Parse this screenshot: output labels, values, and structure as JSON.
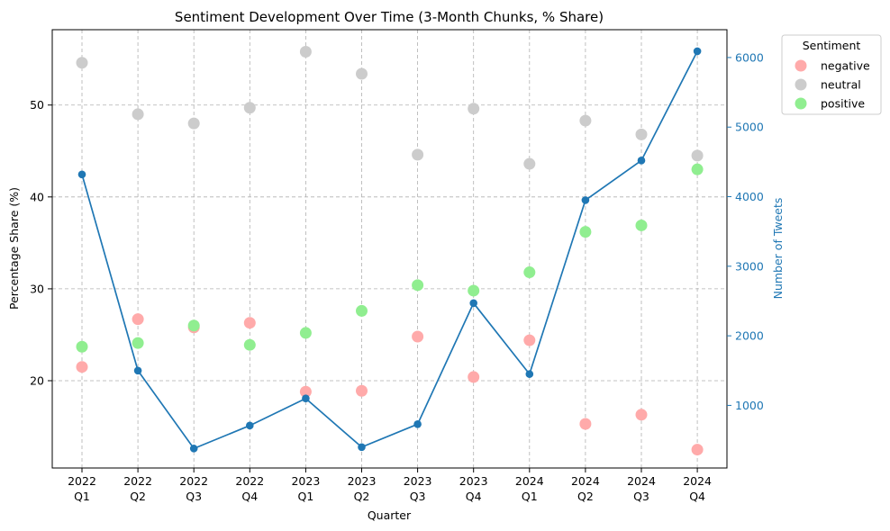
{
  "chart_data": {
    "type": "scatter",
    "title": "Sentiment Development Over Time (3-Month Chunks, % Share)",
    "xlabel": "Quarter",
    "ylabel": "Percentage Share (%)",
    "y2label": "Number of Tweets",
    "categories": [
      [
        "2022",
        "Q1"
      ],
      [
        "2022",
        "Q2"
      ],
      [
        "2022",
        "Q3"
      ],
      [
        "2022",
        "Q4"
      ],
      [
        "2023",
        "Q1"
      ],
      [
        "2023",
        "Q2"
      ],
      [
        "2023",
        "Q3"
      ],
      [
        "2023",
        "Q4"
      ],
      [
        "2024",
        "Q1"
      ],
      [
        "2024",
        "Q2"
      ],
      [
        "2024",
        "Q3"
      ],
      [
        "2024",
        "Q4"
      ]
    ],
    "ylim": [
      10.5,
      58.2
    ],
    "yticks": [
      20,
      30,
      40,
      50
    ],
    "y2lim": [
      100,
      6400
    ],
    "y2ticks": [
      1000,
      2000,
      3000,
      4000,
      5000,
      6000
    ],
    "grid": true,
    "legend": {
      "title": "Sentiment",
      "placement": "outside-top-right"
    },
    "series": [
      {
        "name": "negative",
        "color": "#ffaaaa",
        "kind": "scatter",
        "axis": "left",
        "values": [
          21.5,
          26.7,
          25.8,
          26.3,
          18.8,
          18.9,
          24.8,
          20.4,
          24.4,
          15.3,
          16.3,
          12.5
        ]
      },
      {
        "name": "neutral",
        "color": "#cccccc",
        "kind": "scatter",
        "axis": "left",
        "values": [
          54.6,
          49.0,
          48.0,
          49.7,
          55.8,
          53.4,
          44.6,
          49.6,
          43.6,
          48.3,
          46.8,
          44.5
        ]
      },
      {
        "name": "positive",
        "color": "#90ee90",
        "kind": "scatter",
        "axis": "left",
        "values": [
          23.7,
          24.1,
          26.0,
          23.9,
          25.2,
          27.6,
          30.4,
          29.8,
          31.8,
          36.2,
          36.9,
          43.0
        ]
      },
      {
        "kind": "line",
        "axis": "right",
        "color": "#1f77b4",
        "values": [
          4320,
          1500,
          380,
          710,
          1100,
          400,
          730,
          2470,
          1450,
          3950,
          4520,
          6090
        ]
      }
    ]
  }
}
